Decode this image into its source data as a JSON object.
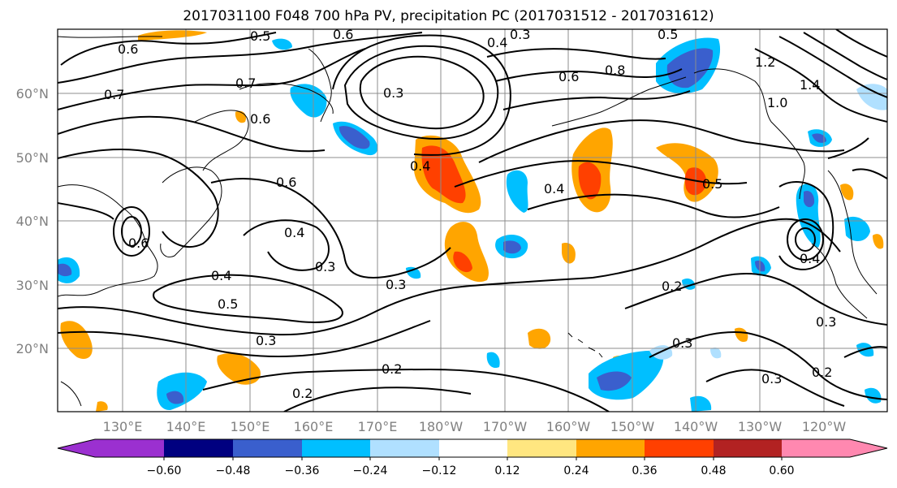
{
  "title": "2017031100 F048 700 hPa PV, precipitation PC (2017031512 - 2017031612)",
  "map": {
    "lat_labels": [
      "60°N",
      "50°N",
      "40°N",
      "30°N",
      "20°N"
    ],
    "lon_labels": [
      "130°E",
      "140°E",
      "150°E",
      "160°E",
      "170°E",
      "180°W",
      "170°W",
      "160°W",
      "150°W",
      "140°W",
      "130°W",
      "120°W"
    ],
    "contour_labels": [
      "0.6",
      "0.5",
      "0.6",
      "0.3",
      "0.4",
      "0.5",
      "0.7",
      "0.7",
      "0.6",
      "0.3",
      "0.6",
      "0.8",
      "1.2",
      "1.4",
      "1.0",
      "0.4",
      "0.4",
      "0.5",
      "0.6",
      "0.4",
      "0.3",
      "0.4",
      "0.5",
      "0.3",
      "0.2",
      "0.3",
      "0.2",
      "0.2",
      "0.3",
      "0.3",
      "0.2",
      "0.3",
      "0.6",
      "0.4"
    ]
  },
  "colorbar": {
    "tick_labels": [
      "−0.60",
      "−0.48",
      "−0.36",
      "−0.24",
      "−0.12",
      "0.12",
      "0.24",
      "0.36",
      "0.48",
      "0.60"
    ],
    "colors": [
      "#9b30d0",
      "#000080",
      "#3a5fcd",
      "#00bfff",
      "#b0e0ff",
      "#ffffff",
      "#ffe680",
      "#ffa500",
      "#ff4000",
      "#b22222",
      "#ff88b0"
    ]
  }
}
